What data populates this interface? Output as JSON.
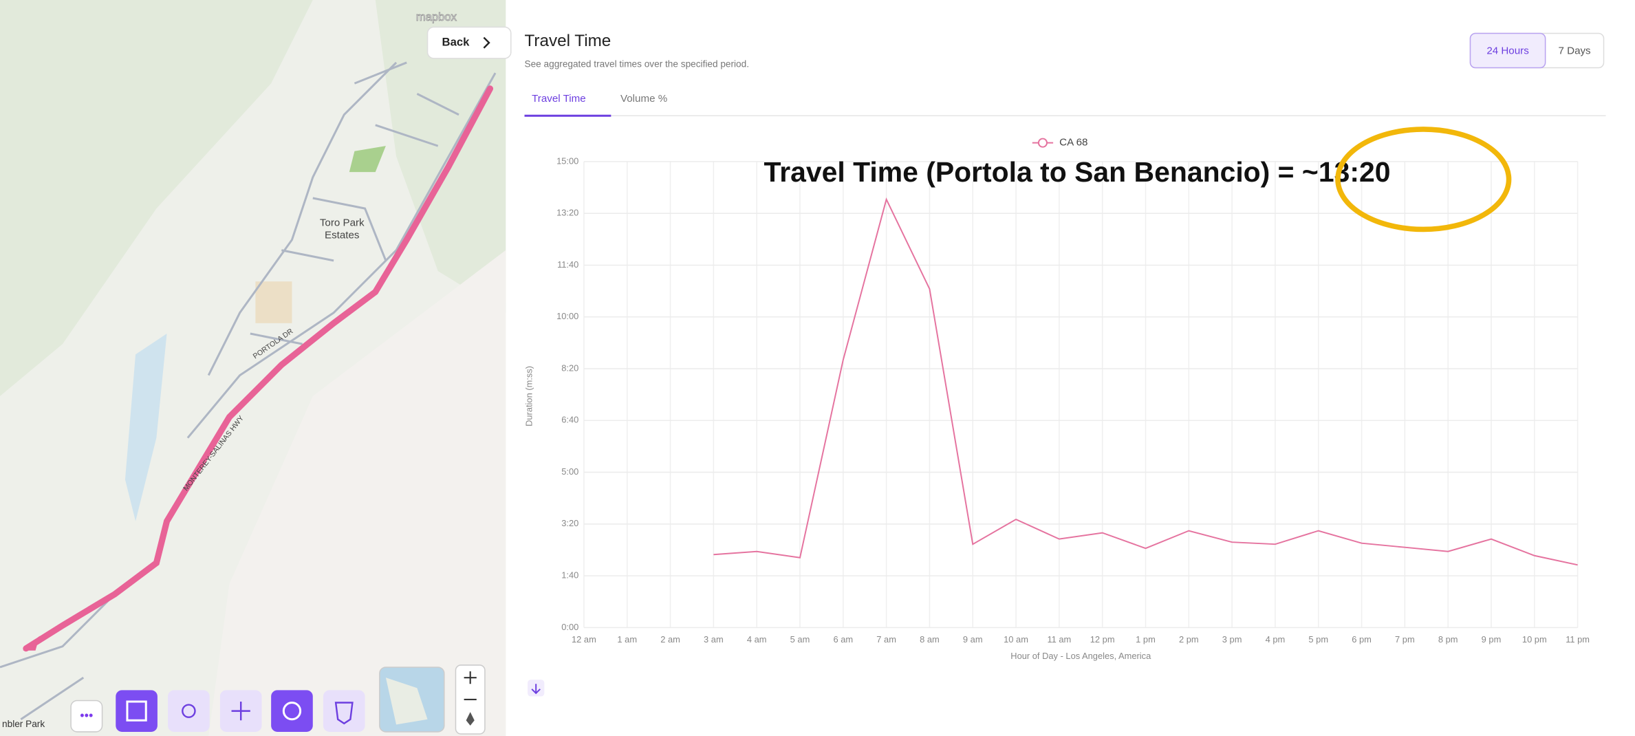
{
  "map": {
    "attribution": "mapbox",
    "back": "Back",
    "labels": [
      "Toro Park",
      "Estates",
      "PORTOLA DR",
      "MONTEREY-SALINAS HWY",
      "nbler Park"
    ]
  },
  "header": {
    "title": "Travel Time",
    "subtitle": "See aggregated travel times over the specified period.",
    "periods": [
      "24 Hours",
      "7 Days"
    ],
    "tabs": [
      "Travel Time",
      "Volume %"
    ]
  },
  "chart_data": {
    "type": "line",
    "annotation": "Travel Time (Portola to San Benancio) = ~13:20",
    "x_label": "Hour of Day - Los Angeles, America",
    "y_label": "Duration (m:ss)",
    "categories": [
      "12 am",
      "1 am",
      "2 am",
      "3 am",
      "4 am",
      "5 am",
      "6 am",
      "7 am",
      "8 am",
      "9 am",
      "10 am",
      "11 am",
      "12 pm",
      "1 pm",
      "2 pm",
      "3 pm",
      "4 pm",
      "5 pm",
      "6 pm",
      "7 pm",
      "8 pm",
      "9 pm",
      "10 pm",
      "11 pm"
    ],
    "series": [
      {
        "name": "CA 68",
        "color": "#e5739f",
        "values": [
          null,
          null,
          null,
          141,
          147,
          135,
          517,
          827,
          654,
          161,
          209,
          171,
          183,
          153,
          187,
          165,
          161,
          187,
          163,
          155,
          147,
          171,
          139,
          121
        ]
      }
    ],
    "ylim": [
      0,
      900
    ],
    "yticks": [
      {
        "value": 0,
        "label": "0:00"
      },
      {
        "value": 100,
        "label": "1:40"
      },
      {
        "value": 200,
        "label": "3:20"
      },
      {
        "value": 300,
        "label": "5:00"
      },
      {
        "value": 400,
        "label": "6:40"
      },
      {
        "value": 500,
        "label": "8:20"
      },
      {
        "value": 600,
        "label": "10:00"
      },
      {
        "value": 700,
        "label": "11:40"
      },
      {
        "value": 800,
        "label": "13:20"
      },
      {
        "value": 900,
        "label": "15:00"
      }
    ],
    "grid": true,
    "legend": "top"
  }
}
